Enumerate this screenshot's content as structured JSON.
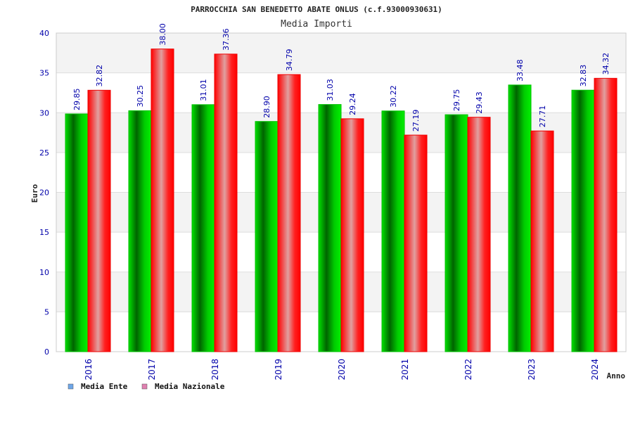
{
  "chart_data": {
    "type": "bar",
    "title": "PARROCCHIA SAN BENEDETTO ABATE ONLUS (c.f.93000930631)",
    "subtitle": "Media Importi",
    "xlabel": "Anno",
    "ylabel": "Euro",
    "ylim": [
      0,
      40
    ],
    "yticks": [
      "0",
      "5",
      "10",
      "15",
      "20",
      "25",
      "30",
      "35",
      "40"
    ],
    "categories": [
      "2016",
      "2017",
      "2018",
      "2019",
      "2020",
      "2021",
      "2022",
      "2023",
      "2024"
    ],
    "series": [
      {
        "name": "Media Ente",
        "color": "#00b000",
        "legend_color": "#6ea6e8",
        "values": [
          29.85,
          30.25,
          31.01,
          28.9,
          31.03,
          30.22,
          29.75,
          33.48,
          32.83
        ],
        "labels": [
          "29.85",
          "30.25",
          "31.01",
          "28.90",
          "31.03",
          "30.22",
          "29.75",
          "33.48",
          "32.83"
        ]
      },
      {
        "name": "Media Nazionale",
        "color": "#ee0000",
        "legend_color": "#e080b0",
        "values": [
          32.82,
          38.0,
          37.36,
          34.79,
          29.24,
          27.19,
          29.43,
          27.71,
          34.32
        ],
        "labels": [
          "32.82",
          "38.00",
          "37.36",
          "34.79",
          "29.24",
          "27.19",
          "29.43",
          "27.71",
          "34.32"
        ]
      }
    ],
    "grid": true,
    "legend_position": "bottom-left"
  }
}
